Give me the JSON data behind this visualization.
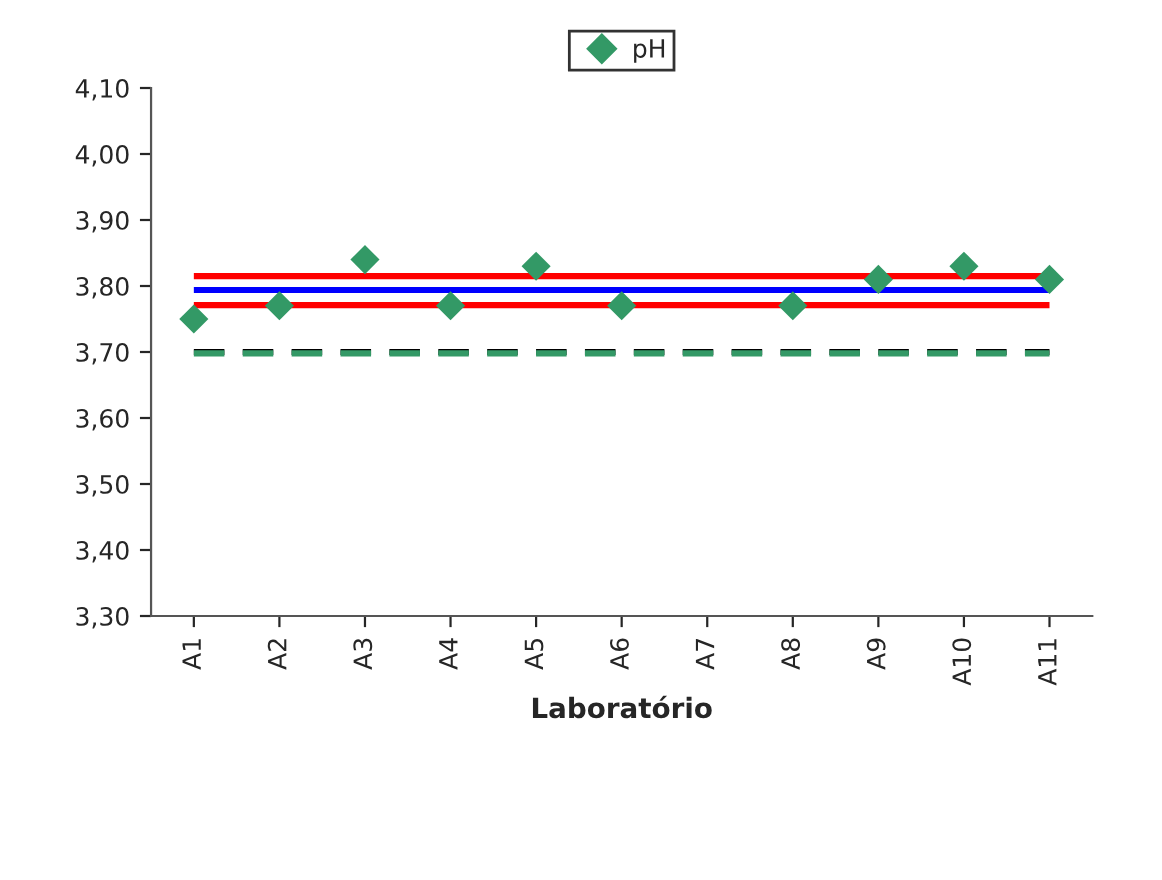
{
  "chart_data": {
    "type": "scatter",
    "xlabel": "Laboratório",
    "categories": [
      "A1",
      "A2",
      "A3",
      "A4",
      "A5",
      "A6",
      "A7",
      "A8",
      "A9",
      "A10",
      "A11"
    ],
    "series": [
      {
        "name": "pH",
        "color": "#339966",
        "values": [
          3.75,
          3.77,
          3.84,
          3.77,
          3.83,
          3.77,
          null,
          3.77,
          3.81,
          3.83,
          3.81
        ]
      }
    ],
    "marker": "diamond",
    "grid": false,
    "legend": "top",
    "ylim": [
      3.3,
      4.1
    ],
    "yticks": [
      {
        "value": 3.3,
        "label": "3,30"
      },
      {
        "value": 3.4,
        "label": "3,40"
      },
      {
        "value": 3.5,
        "label": "3,50"
      },
      {
        "value": 3.6,
        "label": "3,60"
      },
      {
        "value": 3.7,
        "label": "3,70"
      },
      {
        "value": 3.8,
        "label": "3,80"
      },
      {
        "value": 3.9,
        "label": "3,90"
      },
      {
        "value": 4.0,
        "label": "4,00"
      },
      {
        "value": 4.1,
        "label": "4,10"
      }
    ],
    "ref_lines": [
      {
        "axis": "y",
        "value": 3.815,
        "color": "#ff0000",
        "line_style": "solid"
      },
      {
        "axis": "y",
        "value": 3.794,
        "color": "#0000ff",
        "line_style": "solid"
      },
      {
        "axis": "y",
        "value": 3.771,
        "color": "#ff0000",
        "line_style": "solid"
      },
      {
        "axis": "y",
        "value": 3.7,
        "color": "#000000",
        "line_style": "dashed"
      },
      {
        "axis": "y",
        "value": 3.698,
        "color": "#339966",
        "line_style": "dashed"
      }
    ]
  }
}
